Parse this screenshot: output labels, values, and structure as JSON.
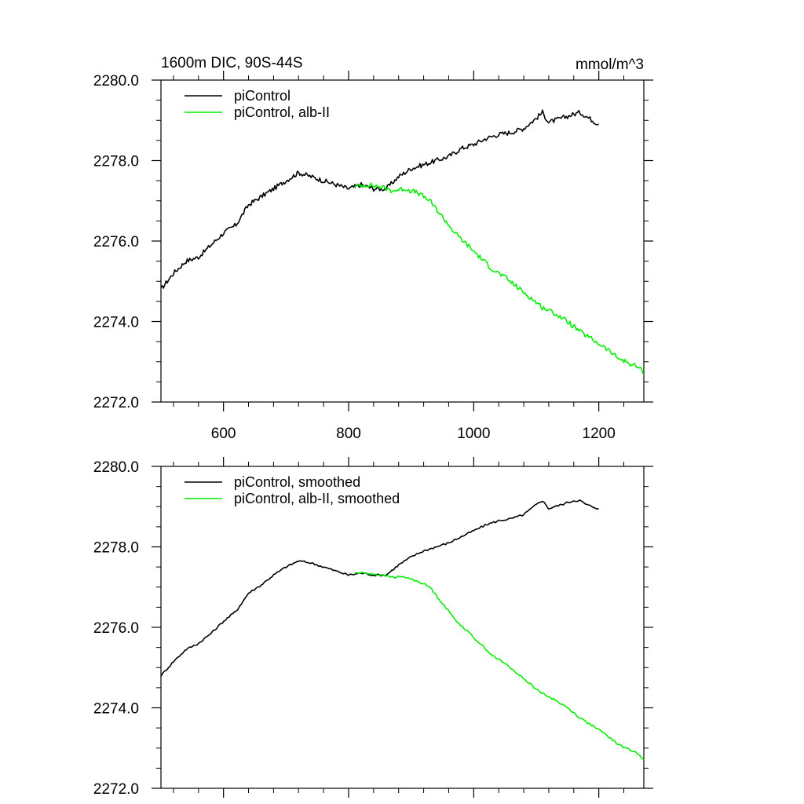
{
  "chart_data": [
    {
      "type": "line",
      "title": "1600m DIC, 90S-44S",
      "units": "mmol/m^3",
      "xlabel": "",
      "ylabel": "",
      "xlim": [
        500,
        1272
      ],
      "ylim": [
        2272.0,
        2280.0
      ],
      "xticks": [
        600,
        800,
        1000,
        1200
      ],
      "xtick_labels": [
        "600",
        "800",
        "1000",
        "1200"
      ],
      "yticks": [
        2272.0,
        2274.0,
        2276.0,
        2278.0,
        2280.0
      ],
      "ytick_labels": [
        "2272.0",
        "2274.0",
        "2276.0",
        "2278.0",
        "2280.0"
      ],
      "legend_position": "top-left",
      "series": [
        {
          "name": "piControl",
          "color": "#000000",
          "x": [
            500,
            520,
            540,
            560,
            580,
            600,
            620,
            640,
            660,
            680,
            700,
            720,
            740,
            760,
            780,
            800,
            820,
            840,
            860,
            880,
            900,
            920,
            940,
            960,
            980,
            1000,
            1020,
            1040,
            1060,
            1080,
            1100,
            1110,
            1120,
            1140,
            1160,
            1170,
            1180,
            1200
          ],
          "y": [
            2274.8,
            2275.2,
            2275.5,
            2275.6,
            2275.9,
            2276.2,
            2276.4,
            2276.9,
            2277.1,
            2277.3,
            2277.5,
            2277.7,
            2277.6,
            2277.5,
            2277.4,
            2277.3,
            2277.4,
            2277.3,
            2277.3,
            2277.6,
            2277.8,
            2277.9,
            2278.0,
            2278.1,
            2278.3,
            2278.4,
            2278.55,
            2278.65,
            2278.7,
            2278.8,
            2279.05,
            2279.2,
            2278.95,
            2279.05,
            2279.15,
            2279.2,
            2279.1,
            2278.9
          ]
        },
        {
          "name": "piControl, alb-II",
          "color": "#00ee00",
          "x": [
            810,
            830,
            850,
            870,
            890,
            910,
            930,
            950,
            970,
            990,
            1010,
            1030,
            1050,
            1070,
            1090,
            1110,
            1130,
            1150,
            1170,
            1190,
            1210,
            1230,
            1250,
            1265,
            1272
          ],
          "y": [
            2277.35,
            2277.4,
            2277.35,
            2277.25,
            2277.3,
            2277.2,
            2277.0,
            2276.6,
            2276.2,
            2275.9,
            2275.6,
            2275.3,
            2275.1,
            2274.85,
            2274.6,
            2274.35,
            2274.2,
            2274.0,
            2273.75,
            2273.55,
            2273.35,
            2273.1,
            2272.95,
            2272.85,
            2272.7
          ]
        }
      ]
    },
    {
      "type": "line",
      "title": "",
      "units": "",
      "xlabel": "",
      "ylabel": "",
      "xlim": [
        500,
        1272
      ],
      "ylim": [
        2272.0,
        2280.0
      ],
      "xticks": [
        600,
        800,
        1000,
        1200
      ],
      "yticks": [
        2272.0,
        2274.0,
        2276.0,
        2278.0,
        2280.0
      ],
      "ytick_labels": [
        "2272.0",
        "2274.0",
        "2276.0",
        "2278.0",
        "2280.0"
      ],
      "legend_position": "top-left",
      "series": [
        {
          "name": "piControl, smoothed",
          "color": "#000000",
          "x": [
            500,
            520,
            540,
            560,
            580,
            600,
            620,
            640,
            660,
            680,
            700,
            720,
            740,
            760,
            780,
            800,
            820,
            840,
            860,
            880,
            900,
            920,
            940,
            960,
            980,
            1000,
            1020,
            1040,
            1060,
            1080,
            1100,
            1110,
            1120,
            1140,
            1160,
            1170,
            1180,
            1200
          ],
          "y": [
            2274.8,
            2275.15,
            2275.45,
            2275.6,
            2275.85,
            2276.15,
            2276.4,
            2276.85,
            2277.05,
            2277.3,
            2277.5,
            2277.65,
            2277.6,
            2277.5,
            2277.4,
            2277.3,
            2277.35,
            2277.3,
            2277.3,
            2277.55,
            2277.75,
            2277.9,
            2278.0,
            2278.1,
            2278.25,
            2278.4,
            2278.55,
            2278.65,
            2278.7,
            2278.8,
            2279.05,
            2279.15,
            2278.95,
            2279.05,
            2279.15,
            2279.15,
            2279.05,
            2278.95
          ]
        },
        {
          "name": "piControl, alb-II, smoothed",
          "color": "#00ee00",
          "x": [
            810,
            830,
            850,
            870,
            890,
            910,
            930,
            950,
            970,
            990,
            1010,
            1030,
            1050,
            1070,
            1090,
            1110,
            1130,
            1150,
            1170,
            1190,
            1210,
            1230,
            1250,
            1265,
            1272
          ],
          "y": [
            2277.35,
            2277.35,
            2277.3,
            2277.25,
            2277.25,
            2277.15,
            2277.0,
            2276.6,
            2276.2,
            2275.9,
            2275.6,
            2275.3,
            2275.1,
            2274.85,
            2274.6,
            2274.35,
            2274.2,
            2274.0,
            2273.75,
            2273.55,
            2273.35,
            2273.1,
            2272.95,
            2272.85,
            2272.7
          ]
        }
      ]
    }
  ]
}
